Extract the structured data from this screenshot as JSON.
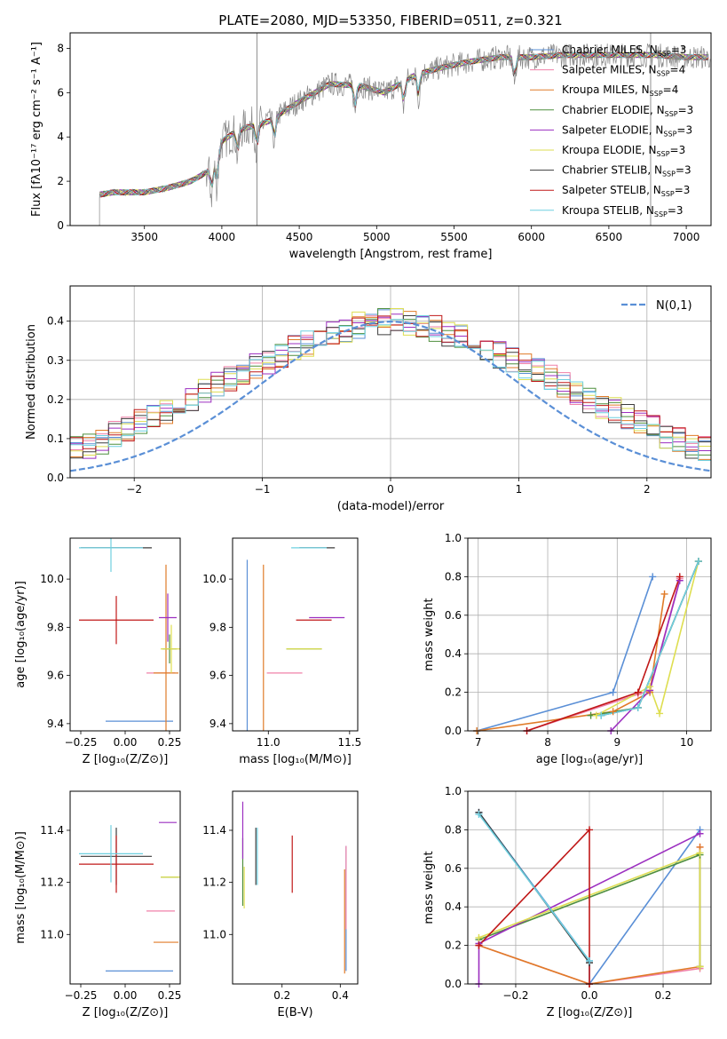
{
  "figure_title": "PLATE=2080, MJD=53350, FIBERID=0511, z=0.321",
  "colors": {
    "chabrier_miles": "#5a8fd6",
    "salpeter_miles": "#f080a8",
    "kroupa_miles": "#e07b28",
    "chabrier_elodie": "#4f8f3f",
    "salpeter_elodie": "#9c2fc0",
    "kroupa_elodie": "#dede50",
    "chabrier_stelib": "#3c3c3c",
    "salpeter_stelib": "#c01818",
    "kroupa_stelib": "#6fd0e0",
    "data": "#888888",
    "gauss": "#5a8fd6",
    "grid": "#b0b0b0"
  },
  "chart_data": [
    {
      "type": "line",
      "panel": "spectrum",
      "xlabel": "wavelength [Angstrom, rest frame]",
      "ylabel": "Flux [fλ10⁻¹⁷ erg cm⁻² s⁻¹ A⁻¹]",
      "xlim": [
        3020,
        7160
      ],
      "ylim": [
        0,
        8.7
      ],
      "xticks": [
        "3500",
        "4000",
        "4500",
        "5000",
        "5500",
        "6000",
        "6500",
        "7000"
      ],
      "yticks": [
        "0",
        "2",
        "4",
        "6",
        "8"
      ],
      "legend": [
        "Chabrier MILES, N_SSP=3",
        "Salpeter MILES, N_SSP=4",
        "Kroupa MILES, N_SSP=4",
        "Chabrier ELODIE, N_SSP=3",
        "Salpeter ELODIE, N_SSP=3",
        "Kroupa ELODIE, N_SSP=3",
        "Chabrier STELIB, N_SSP=3",
        "Salpeter STELIB, N_SSP=3",
        "Kroupa STELIB, N_SSP=3"
      ],
      "continuum_anchor_points": {
        "x": [
          3210,
          3300,
          3500,
          3650,
          3800,
          3900,
          3950,
          4000,
          4100,
          4300,
          4500,
          4700,
          4900,
          5050,
          5150,
          5250,
          5400,
          5600,
          5800,
          6000,
          6200,
          6400,
          6600,
          6800,
          7000,
          7150
        ],
        "y": [
          1.4,
          1.5,
          1.5,
          1.7,
          2.0,
          2.4,
          2.7,
          3.8,
          4.3,
          4.7,
          5.6,
          6.4,
          6.3,
          6.0,
          6.4,
          6.8,
          7.1,
          7.4,
          7.6,
          7.6,
          7.7,
          7.7,
          7.7,
          7.7,
          7.6,
          7.6
        ]
      }
    },
    {
      "type": "line",
      "panel": "residual_histogram",
      "xlabel": "(data-model)/error",
      "ylabel": "Normed distribution",
      "xlim": [
        -2.5,
        2.5
      ],
      "ylim": [
        0,
        0.49
      ],
      "xticks": [
        "−2",
        "−1",
        "0",
        "1",
        "2"
      ],
      "yticks": [
        "0.0",
        "0.1",
        "0.2",
        "0.3",
        "0.4"
      ],
      "legend": "N(0,1)",
      "bin_width": 0.1,
      "series_values": [
        0.025,
        0.027,
        0.03,
        0.04,
        0.048,
        0.06,
        0.072,
        0.082,
        0.095,
        0.11,
        0.125,
        0.14,
        0.155,
        0.17,
        0.185,
        0.2,
        0.22,
        0.24,
        0.255,
        0.27,
        0.285,
        0.3,
        0.315,
        0.33,
        0.345,
        0.36,
        0.37,
        0.38,
        0.39,
        0.395,
        0.398,
        0.398,
        0.395,
        0.39,
        0.38,
        0.37,
        0.36,
        0.345,
        0.33,
        0.315,
        0.3,
        0.285,
        0.27,
        0.255,
        0.24,
        0.22,
        0.2,
        0.185,
        0.17,
        0.155,
        0.14,
        0.125,
        0.11,
        0.095,
        0.082,
        0.072,
        0.06,
        0.048,
        0.04,
        0.03,
        0.027,
        0.025
      ]
    },
    {
      "type": "scatter",
      "panel": "age_vs_Z",
      "xlabel": "Z [log₁₀(Z/Z⊙)]",
      "ylabel": "age  [log₁₀(age/yr)]",
      "xlim": [
        -0.31,
        0.31
      ],
      "ylim": [
        9.37,
        10.17
      ],
      "xticks": [
        "−0.25",
        "0.00",
        "0.25"
      ],
      "yticks": [
        "9.4",
        "9.6",
        "9.8",
        "10.0"
      ],
      "points": [
        {
          "series": "chabrier_miles",
          "x": 0.08,
          "y": 9.41,
          "xerr": 0.19,
          "yerr": 0.0
        },
        {
          "series": "salpeter_miles",
          "x": 0.2,
          "y": 9.61,
          "xerr": 0.08,
          "yerr": 0.0
        },
        {
          "series": "kroupa_miles",
          "x": 0.23,
          "y": 9.61,
          "xerr": 0.07,
          "yerr": 0.45
        },
        {
          "series": "chabrier_elodie",
          "x": 0.25,
          "y": 9.71,
          "xerr": 0.04,
          "yerr": 0.06
        },
        {
          "series": "salpeter_elodie",
          "x": 0.24,
          "y": 9.84,
          "xerr": 0.05,
          "yerr": 0.1
        },
        {
          "series": "kroupa_elodie",
          "x": 0.26,
          "y": 9.71,
          "xerr": 0.06,
          "yerr": 0.1
        },
        {
          "series": "chabrier_stelib",
          "x": -0.05,
          "y": 10.13,
          "xerr": 0.2,
          "yerr": 0.0
        },
        {
          "series": "salpeter_stelib",
          "x": -0.05,
          "y": 9.83,
          "xerr": 0.21,
          "yerr": 0.1
        },
        {
          "series": "kroupa_stelib",
          "x": -0.08,
          "y": 10.13,
          "xerr": 0.18,
          "yerr": 0.1
        }
      ]
    },
    {
      "type": "scatter",
      "panel": "age_vs_mass",
      "xlabel": "mass [log₁₀(M/M⊙)]",
      "ylabel": "",
      "xlim": [
        10.78,
        11.55
      ],
      "ylim": [
        9.37,
        10.17
      ],
      "xticks": [
        "11.0",
        "11.5"
      ],
      "yticks": [
        "9.4",
        "9.6",
        "9.8",
        "10.0"
      ],
      "points": [
        {
          "series": "chabrier_miles",
          "x": 10.87,
          "y": 9.41,
          "xerr": 0.0,
          "yerr": 0.67
        },
        {
          "series": "salpeter_miles",
          "x": 11.1,
          "y": 9.61,
          "xerr": 0.0,
          "yerr": 0.0
        },
        {
          "series": "kroupa_miles",
          "x": 10.97,
          "y": 9.61,
          "xerr": 0.0,
          "yerr": 0.45
        },
        {
          "series": "chabrier_elodie",
          "x": 11.22,
          "y": 9.71,
          "xerr": 0.0,
          "yerr": 0.0
        },
        {
          "series": "salpeter_elodie",
          "x": 11.36,
          "y": 9.84,
          "xerr": 0.0,
          "yerr": 0.0
        },
        {
          "series": "kroupa_elodie",
          "x": 11.22,
          "y": 9.71,
          "xerr": 0.0,
          "yerr": 0.0
        },
        {
          "series": "chabrier_stelib",
          "x": 11.3,
          "y": 10.13,
          "xerr": 0.0,
          "yerr": 0.0
        },
        {
          "series": "salpeter_stelib",
          "x": 11.28,
          "y": 9.83,
          "xerr": 0.0,
          "yerr": 0.0
        },
        {
          "series": "kroupa_stelib",
          "x": 11.25,
          "y": 10.13,
          "xerr": 0.0,
          "yerr": 0.0
        }
      ]
    },
    {
      "type": "line",
      "panel": "mass_weight_vs_age",
      "xlabel": "age  [log₁₀(age/yr)]",
      "ylabel": "mass weight",
      "xlim": [
        6.85,
        10.35
      ],
      "ylim": [
        0,
        1.0
      ],
      "xticks": [
        "7",
        "8",
        "9",
        "10"
      ],
      "yticks": [
        "0.0",
        "0.2",
        "0.4",
        "0.6",
        "0.8",
        "1.0"
      ],
      "series": [
        {
          "key": "chabrier_miles",
          "x": [
            6.98,
            8.94,
            9.51
          ],
          "y": [
            0.0,
            0.2,
            0.8
          ]
        },
        {
          "key": "salpeter_miles",
          "x": [
            7.7,
            9.3,
            9.47,
            9.9
          ],
          "y": [
            0.0,
            0.19,
            0.21,
            0.79
          ]
        },
        {
          "key": "kroupa_miles",
          "x": [
            6.98,
            8.94,
            9.47,
            9.68
          ],
          "y": [
            0.0,
            0.1,
            0.2,
            0.71
          ]
        },
        {
          "key": "chabrier_elodie",
          "x": [
            8.62,
            9.3,
            10.17
          ],
          "y": [
            0.08,
            0.12,
            0.88
          ]
        },
        {
          "key": "salpeter_elodie",
          "x": [
            8.91,
            9.47,
            9.9
          ],
          "y": [
            0.0,
            0.21,
            0.78
          ]
        },
        {
          "key": "kroupa_elodie",
          "x": [
            8.7,
            9.47,
            9.61,
            10.17
          ],
          "y": [
            0.08,
            0.23,
            0.09,
            0.88
          ]
        },
        {
          "key": "chabrier_stelib",
          "x": [
            8.77,
            9.3,
            10.17
          ],
          "y": [
            0.08,
            0.12,
            0.88
          ]
        },
        {
          "key": "salpeter_stelib",
          "x": [
            7.7,
            9.3,
            9.9
          ],
          "y": [
            0.0,
            0.2,
            0.8
          ]
        },
        {
          "key": "kroupa_stelib",
          "x": [
            8.77,
            9.3,
            10.17
          ],
          "y": [
            0.08,
            0.12,
            0.88
          ]
        }
      ]
    },
    {
      "type": "scatter",
      "panel": "mass_vs_Z",
      "xlabel": "Z [log₁₀(Z/Z⊙)]",
      "ylabel": "mass [log₁₀(M/M⊙)]",
      "xlim": [
        -0.31,
        0.31
      ],
      "ylim": [
        10.81,
        11.55
      ],
      "xticks": [
        "−0.25",
        "0.00",
        "0.25"
      ],
      "yticks": [
        "11.0",
        "11.2",
        "11.4"
      ],
      "points": [
        {
          "series": "chabrier_miles",
          "x": 0.08,
          "y": 10.86,
          "xerr": 0.19,
          "yerr": 0.0
        },
        {
          "series": "salpeter_miles",
          "x": 0.2,
          "y": 11.09,
          "xerr": 0.08,
          "yerr": 0.0
        },
        {
          "series": "kroupa_miles",
          "x": 0.23,
          "y": 10.97,
          "xerr": 0.07,
          "yerr": 0.0
        },
        {
          "series": "chabrier_elodie",
          "x": 0.25,
          "y": 11.22,
          "xerr": 0.05,
          "yerr": 0.0
        },
        {
          "series": "salpeter_elodie",
          "x": 0.24,
          "y": 11.43,
          "xerr": 0.05,
          "yerr": 0.0
        },
        {
          "series": "kroupa_elodie",
          "x": 0.26,
          "y": 11.22,
          "xerr": 0.06,
          "yerr": 0.0
        },
        {
          "series": "chabrier_stelib",
          "x": -0.05,
          "y": 11.3,
          "xerr": 0.2,
          "yerr": 0.11
        },
        {
          "series": "salpeter_stelib",
          "x": -0.05,
          "y": 11.27,
          "xerr": 0.21,
          "yerr": 0.11
        },
        {
          "series": "kroupa_stelib",
          "x": -0.08,
          "y": 11.31,
          "xerr": 0.18,
          "yerr": 0.11
        }
      ]
    },
    {
      "type": "scatter",
      "panel": "mass_vs_ebv",
      "xlabel": "E(B-V)",
      "ylabel": "",
      "xlim": [
        0.03,
        0.46
      ],
      "ylim": [
        10.81,
        11.55
      ],
      "xticks": [
        "0.2",
        "0.4"
      ],
      "yticks": [
        "11.0",
        "11.2",
        "11.4"
      ],
      "points": [
        {
          "series": "chabrier_miles",
          "x": 0.42,
          "y": 11.1,
          "xerr": 0.0,
          "yerr": 0.24
        },
        {
          "series": "salpeter_miles",
          "x": 0.42,
          "y": 11.18,
          "xerr": 0.0,
          "yerr": 0.16
        },
        {
          "series": "kroupa_miles",
          "x": 0.415,
          "y": 11.05,
          "xerr": 0.0,
          "yerr": 0.2
        },
        {
          "series": "chabrier_elodie",
          "x": 0.065,
          "y": 11.24,
          "xerr": 0.0,
          "yerr": 0.13
        },
        {
          "series": "salpeter_elodie",
          "x": 0.065,
          "y": 11.4,
          "xerr": 0.0,
          "yerr": 0.11
        },
        {
          "series": "kroupa_elodie",
          "x": 0.07,
          "y": 11.18,
          "xerr": 0.0,
          "yerr": 0.08
        },
        {
          "series": "chabrier_stelib",
          "x": 0.11,
          "y": 11.3,
          "xerr": 0.0,
          "yerr": 0.11
        },
        {
          "series": "salpeter_stelib",
          "x": 0.235,
          "y": 11.27,
          "xerr": 0.0,
          "yerr": 0.11
        },
        {
          "series": "kroupa_stelib",
          "x": 0.115,
          "y": 11.3,
          "xerr": 0.0,
          "yerr": 0.11
        }
      ]
    },
    {
      "type": "line",
      "panel": "mass_weight_vs_Z",
      "xlabel": "Z [log₁₀(Z/Z⊙)]",
      "ylabel": "mass weight",
      "xlim": [
        -0.33,
        0.33
      ],
      "ylim": [
        0,
        1.0
      ],
      "xticks": [
        "−0.2",
        "0.0",
        "0.2"
      ],
      "yticks": [
        "0.0",
        "0.2",
        "0.4",
        "0.6",
        "0.8",
        "1.0"
      ],
      "series": [
        {
          "key": "chabrier_miles",
          "x": [
            -0.3,
            0.0,
            0.0,
            0.3
          ],
          "y": [
            0.89,
            0.12,
            0.0,
            0.8
          ]
        },
        {
          "key": "salpeter_miles",
          "x": [
            -0.3,
            0.0,
            0.3,
            0.3
          ],
          "y": [
            0.2,
            0.0,
            0.08,
            0.71
          ]
        },
        {
          "key": "kroupa_miles",
          "x": [
            -0.3,
            0.0,
            0.3,
            0.3
          ],
          "y": [
            0.2,
            0.0,
            0.09,
            0.71
          ]
        },
        {
          "key": "chabrier_elodie",
          "x": [
            -0.3,
            0.3,
            0.3
          ],
          "y": [
            0.23,
            0.67,
            0.09
          ]
        },
        {
          "key": "salpeter_elodie",
          "x": [
            -0.3,
            -0.3,
            0.3
          ],
          "y": [
            0.0,
            0.21,
            0.78
          ]
        },
        {
          "key": "kroupa_elodie",
          "x": [
            -0.3,
            0.3,
            0.3
          ],
          "y": [
            0.24,
            0.68,
            0.09
          ]
        },
        {
          "key": "chabrier_stelib",
          "x": [
            -0.3,
            0.0
          ],
          "y": [
            0.89,
            0.11
          ]
        },
        {
          "key": "salpeter_stelib",
          "x": [
            -0.3,
            0.0,
            0.0
          ],
          "y": [
            0.2,
            0.8,
            0.0
          ]
        },
        {
          "key": "kroupa_stelib",
          "x": [
            -0.3,
            0.0
          ],
          "y": [
            0.88,
            0.12
          ]
        }
      ]
    }
  ]
}
